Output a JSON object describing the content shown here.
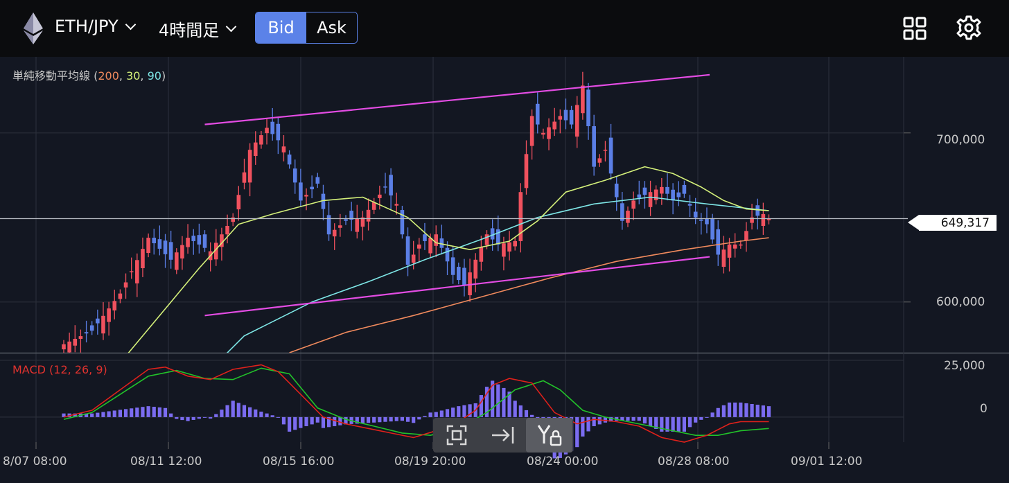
{
  "header": {
    "pair": "ETH/JPY",
    "timeframe": "4時間足",
    "bid_label": "Bid",
    "ask_label": "Ask",
    "active_side": "Bid"
  },
  "legends": {
    "sma_name": "単純移動平均線 ",
    "sma_open": "(",
    "sma_200": "200",
    "sma_30": "30",
    "sma_90": "90",
    "sma_sep": ", ",
    "sma_close": ")",
    "macd": "MACD (12, 26, 9)"
  },
  "colors": {
    "bg": "#131722",
    "up": "#f0515e",
    "down": "#5b7fe6",
    "sma200": "#f08a5d",
    "sma30": "#d4f07a",
    "sma90": "#7ee6e6",
    "channel": "#e34ce3",
    "macd": "#e0211b",
    "signal": "#22c22a",
    "hist": "#7b6cf0"
  },
  "icons": [
    "ethereum-icon",
    "grid-icon",
    "gear-icon",
    "expand-icon",
    "scroll-to-end-icon",
    "y-axis-lock-icon"
  ],
  "chart_data": {
    "type": "candlestick",
    "pair": "ETH/JPY",
    "current_price": 649317,
    "current_price_label": "649,317",
    "price_ticks": [
      {
        "value": 700000,
        "label": "700,000"
      },
      {
        "value": 600000,
        "label": "600,000"
      }
    ],
    "price_range": [
      570000,
      745000
    ],
    "macd_ticks": [
      {
        "value": 25000,
        "label": "25,000"
      },
      {
        "value": 0,
        "label": "0"
      }
    ],
    "macd_range": [
      -11000,
      28000
    ],
    "x_ticks": [
      "8/07 08:00",
      "08/11 12:00",
      "08/15 16:00",
      "08/19 20:00",
      "08/24 00:00",
      "08/28 08:00",
      "09/01 12:00"
    ],
    "candle_count": 126,
    "close_anchors": [
      [
        0,
        575000
      ],
      [
        5,
        583000
      ],
      [
        10,
        605000
      ],
      [
        15,
        638000
      ],
      [
        19,
        625000
      ],
      [
        22,
        638000
      ],
      [
        26,
        630000
      ],
      [
        30,
        650000
      ],
      [
        33,
        690000
      ],
      [
        36,
        703000
      ],
      [
        39,
        692000
      ],
      [
        42,
        660000
      ],
      [
        45,
        670000
      ],
      [
        47,
        640000
      ],
      [
        50,
        648000
      ],
      [
        53,
        650000
      ],
      [
        57,
        668000
      ],
      [
        59,
        658000
      ],
      [
        61,
        622000
      ],
      [
        63,
        634000
      ],
      [
        66,
        640000
      ],
      [
        69,
        616000
      ],
      [
        71,
        610000
      ],
      [
        73,
        625000
      ],
      [
        75,
        640000
      ],
      [
        77,
        634000
      ],
      [
        80,
        636000
      ],
      [
        81,
        665000
      ],
      [
        83,
        710000
      ],
      [
        85,
        700000
      ],
      [
        88,
        710000
      ],
      [
        90,
        705000
      ],
      [
        92,
        728000
      ],
      [
        94,
        680000
      ],
      [
        96,
        690000
      ],
      [
        99,
        648000
      ],
      [
        101,
        660000
      ],
      [
        104,
        665000
      ],
      [
        106,
        668000
      ],
      [
        108,
        660000
      ],
      [
        110,
        664000
      ],
      [
        112,
        650000
      ],
      [
        114,
        646000
      ],
      [
        116,
        628000
      ],
      [
        118,
        634000
      ],
      [
        120,
        634000
      ],
      [
        122,
        650000
      ],
      [
        124,
        652000
      ],
      [
        125,
        649317
      ]
    ],
    "sma30_anchors": [
      [
        0,
        520000
      ],
      [
        11,
        568000
      ],
      [
        24,
        620000
      ],
      [
        31,
        646000
      ],
      [
        37,
        652000
      ],
      [
        46,
        660000
      ],
      [
        53,
        662000
      ],
      [
        61,
        650000
      ],
      [
        66,
        635000
      ],
      [
        72,
        631000
      ],
      [
        79,
        636000
      ],
      [
        84,
        648000
      ],
      [
        89,
        665000
      ],
      [
        96,
        672000
      ],
      [
        103,
        680000
      ],
      [
        108,
        676000
      ],
      [
        113,
        668000
      ],
      [
        117,
        660000
      ],
      [
        121,
        655000
      ],
      [
        125,
        654000
      ]
    ],
    "sma90_anchors": [
      [
        10,
        520000
      ],
      [
        20,
        540000
      ],
      [
        32,
        580000
      ],
      [
        44,
        600000
      ],
      [
        54,
        612000
      ],
      [
        64,
        625000
      ],
      [
        74,
        637000
      ],
      [
        84,
        650000
      ],
      [
        94,
        658000
      ],
      [
        104,
        662000
      ],
      [
        114,
        658000
      ],
      [
        125,
        654000
      ]
    ],
    "sma200_anchors": [
      [
        40,
        570000
      ],
      [
        50,
        582000
      ],
      [
        62,
        592000
      ],
      [
        74,
        603000
      ],
      [
        86,
        614000
      ],
      [
        98,
        624000
      ],
      [
        110,
        631000
      ],
      [
        120,
        636000
      ],
      [
        125,
        638000
      ]
    ],
    "trend_channel": [
      {
        "from": [
          25,
          705000
        ],
        "to": [
          92,
          727000
        ],
        "extend_to": 114.5
      },
      {
        "from": [
          25,
          592000
        ],
        "to": [
          92,
          618000
        ],
        "extend_to": 114.5
      }
    ],
    "macd_anchors": [
      [
        0,
        0
      ],
      [
        5,
        3000
      ],
      [
        10,
        12000
      ],
      [
        15,
        21000
      ],
      [
        18,
        22000
      ],
      [
        22,
        18000
      ],
      [
        26,
        16500
      ],
      [
        30,
        21000
      ],
      [
        35,
        23000
      ],
      [
        38,
        20000
      ],
      [
        42,
        10000
      ],
      [
        46,
        0
      ],
      [
        50,
        -3000
      ],
      [
        54,
        -5000
      ],
      [
        58,
        -7000
      ],
      [
        62,
        -9000
      ],
      [
        66,
        -6000
      ],
      [
        70,
        -2000
      ],
      [
        73,
        3000
      ],
      [
        76,
        14000
      ],
      [
        79,
        17000
      ],
      [
        83,
        15000
      ],
      [
        87,
        2000
      ],
      [
        91,
        -3000
      ],
      [
        94,
        -1000
      ],
      [
        98,
        -2000
      ],
      [
        102,
        -4000
      ],
      [
        106,
        -9000
      ],
      [
        110,
        -11000
      ],
      [
        114,
        -8000
      ],
      [
        118,
        -3000
      ],
      [
        120,
        -2000
      ],
      [
        125,
        -2000
      ]
    ],
    "signal_anchors": [
      [
        0,
        -1000
      ],
      [
        5,
        2000
      ],
      [
        10,
        10000
      ],
      [
        15,
        18000
      ],
      [
        20,
        20500
      ],
      [
        25,
        17000
      ],
      [
        30,
        16500
      ],
      [
        35,
        21500
      ],
      [
        40,
        19000
      ],
      [
        45,
        4000
      ],
      [
        50,
        -1000
      ],
      [
        55,
        -4000
      ],
      [
        60,
        -7000
      ],
      [
        65,
        -8000
      ],
      [
        70,
        -5000
      ],
      [
        75,
        2000
      ],
      [
        80,
        12000
      ],
      [
        85,
        16000
      ],
      [
        88,
        12000
      ],
      [
        92,
        3000
      ],
      [
        96,
        0
      ],
      [
        100,
        -2000
      ],
      [
        104,
        -4000
      ],
      [
        108,
        -6000
      ],
      [
        112,
        -8000
      ],
      [
        116,
        -8000
      ],
      [
        120,
        -6000
      ],
      [
        125,
        -5000
      ]
    ]
  },
  "toolbar": [
    "expand",
    "scroll-to-end",
    "y-axis-lock"
  ]
}
